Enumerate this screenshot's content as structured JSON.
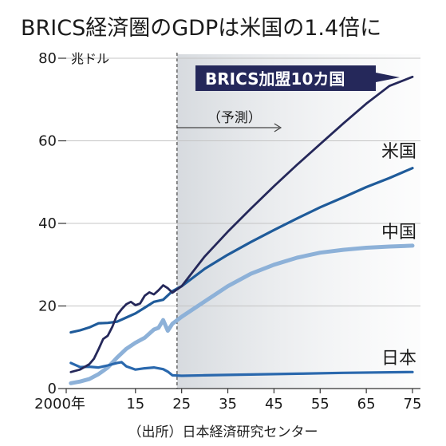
{
  "title": "BRICS経済圏のGDPは米国の1.4倍に",
  "source": "（出所）日本経済研究センター",
  "chart_data": {
    "type": "line",
    "unit": "兆ドル",
    "forecast_label": "（予測）",
    "forecast_start": 2024,
    "callout": "BRICS加盟10カ国",
    "x_ticks": [
      {
        "value": 2000,
        "label": "2000年"
      },
      {
        "value": 2015,
        "label": "15"
      },
      {
        "value": 2025,
        "label": "25"
      },
      {
        "value": 2035,
        "label": "35"
      },
      {
        "value": 2045,
        "label": "45"
      },
      {
        "value": 2055,
        "label": "55"
      },
      {
        "value": 2065,
        "label": "65"
      },
      {
        "value": 2075,
        "label": "75"
      }
    ],
    "y_ticks": [
      0,
      20,
      40,
      60,
      80
    ],
    "xlim": [
      2000,
      2075
    ],
    "ylim": [
      0,
      80
    ],
    "series": [
      {
        "name": "米国",
        "color": "#1f5b9a",
        "x": [
          2001,
          2003,
          2005,
          2007,
          2009,
          2011,
          2013,
          2015,
          2017,
          2019,
          2021,
          2023,
          2025,
          2030,
          2035,
          2040,
          2045,
          2050,
          2055,
          2060,
          2065,
          2070,
          2075
        ],
        "y": [
          13.6,
          14.1,
          14.8,
          15.8,
          15.9,
          16.2,
          17.2,
          18.2,
          19.6,
          21.0,
          21.5,
          23.6,
          24.8,
          29.0,
          32.4,
          35.5,
          38.4,
          41.2,
          43.9,
          46.3,
          48.8,
          51.0,
          53.4
        ]
      },
      {
        "name": "中国",
        "color": "#8db1d8",
        "x": [
          2001,
          2003,
          2005,
          2007,
          2009,
          2011,
          2013,
          2015,
          2017,
          2019,
          2020,
          2021,
          2022,
          2023,
          2025,
          2030,
          2035,
          2040,
          2045,
          2050,
          2055,
          2060,
          2065,
          2070,
          2075
        ],
        "y": [
          1.3,
          1.7,
          2.3,
          3.5,
          5.1,
          7.5,
          9.6,
          11.1,
          12.3,
          14.3,
          14.7,
          16.6,
          14.0,
          15.7,
          17.4,
          21.1,
          24.8,
          27.8,
          30.0,
          31.7,
          32.9,
          33.6,
          34.1,
          34.4,
          34.6
        ]
      },
      {
        "name": "日本",
        "color": "#2a68ad",
        "x": [
          2001,
          2003,
          2005,
          2007,
          2009,
          2011,
          2012,
          2013,
          2015,
          2017,
          2019,
          2021,
          2022,
          2023,
          2025,
          2030,
          2040,
          2050,
          2060,
          2075
        ],
        "y": [
          6.2,
          5.2,
          5.3,
          5.1,
          5.6,
          6.2,
          6.4,
          5.4,
          4.6,
          4.9,
          5.1,
          4.7,
          4.1,
          3.2,
          3.1,
          3.2,
          3.4,
          3.6,
          3.8,
          4.0
        ]
      },
      {
        "name": "BRICS加盟10カ国",
        "color": "#25285a",
        "x": [
          2001,
          2003,
          2005,
          2006,
          2007,
          2008,
          2009,
          2010,
          2011,
          2012,
          2013,
          2014,
          2015,
          2016,
          2017,
          2018,
          2019,
          2020,
          2021,
          2022,
          2023,
          2025,
          2030,
          2035,
          2040,
          2045,
          2050,
          2055,
          2060,
          2065,
          2070,
          2075
        ],
        "y": [
          4.0,
          4.6,
          5.9,
          7.2,
          9.5,
          12.0,
          12.8,
          15.0,
          17.8,
          19.2,
          20.4,
          21.0,
          20.2,
          20.6,
          22.5,
          23.3,
          22.8,
          23.8,
          25.0,
          24.3,
          23.2,
          24.8,
          32.0,
          38.0,
          43.6,
          49.0,
          54.2,
          59.2,
          64.2,
          69.0,
          73.3,
          75.5
        ]
      }
    ],
    "series_labels": [
      "米国",
      "中国",
      "日本"
    ]
  }
}
